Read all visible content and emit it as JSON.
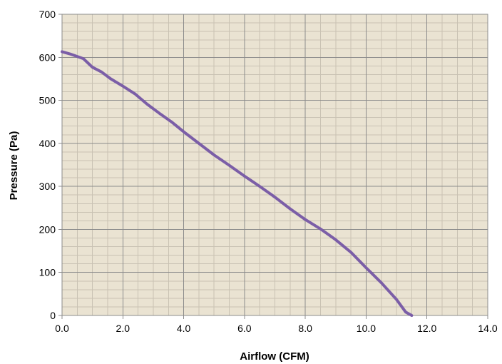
{
  "chart_data": {
    "type": "line",
    "title": "",
    "xlabel": "Airflow (CFM)",
    "ylabel": "Pressure (Pa)",
    "xlim": [
      0,
      14
    ],
    "ylim": [
      0,
      700
    ],
    "x_major_step": 2,
    "x_minor_step": 0.5,
    "y_major_step": 100,
    "y_minor_step": 20,
    "x_tick_labels": [
      "0.0",
      "2.0",
      "4.0",
      "6.0",
      "8.0",
      "10.0",
      "12.0",
      "14.0"
    ],
    "y_tick_labels": [
      "0",
      "100",
      "200",
      "300",
      "400",
      "500",
      "600",
      "700"
    ],
    "grid": true,
    "legend": "none",
    "colors": {
      "plot_background": "#eae3d2",
      "major_grid": "#8c8c8c",
      "minor_grid": "#c9c2b3",
      "line": "#7b5ea7"
    },
    "series": [
      {
        "x": [
          0.0,
          0.3,
          0.7,
          1.0,
          1.3,
          1.6,
          2.0,
          2.4,
          2.8,
          3.2,
          3.6,
          4.0,
          4.5,
          5.0,
          5.5,
          6.0,
          6.5,
          7.0,
          7.5,
          8.0,
          8.5,
          9.0,
          9.5,
          10.0,
          10.5,
          11.0,
          11.3,
          11.5
        ],
        "y": [
          613,
          607,
          597,
          577,
          566,
          550,
          533,
          515,
          491,
          470,
          450,
          427,
          400,
          373,
          349,
          324,
          300,
          275,
          248,
          223,
          201,
          176,
          147,
          111,
          76,
          37,
          8,
          0
        ]
      }
    ]
  }
}
